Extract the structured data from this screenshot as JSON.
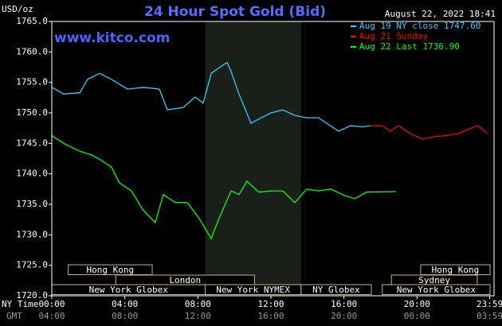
{
  "chart_data": {
    "type": "line",
    "title": "24 Hour Spot Gold (Bid)",
    "y_label": "USD/oz",
    "watermark": "www.kitco.com",
    "timestamp": "August 22, 2022 18:41",
    "x_label": "NY Time",
    "x2_label": "GMT",
    "xlim": [
      0,
      24
    ],
    "ylim": [
      1720,
      1765
    ],
    "grid": false,
    "legend": "top-right",
    "yticks": [
      {
        "value": 1765,
        "label": "1765.0"
      },
      {
        "value": 1760,
        "label": "1760.0"
      },
      {
        "value": 1755,
        "label": "1755.0"
      },
      {
        "value": 1750,
        "label": "1750.0"
      },
      {
        "value": 1745,
        "label": "1745.0"
      },
      {
        "value": 1740,
        "label": "1740.0"
      },
      {
        "value": 1735,
        "label": "1735.0"
      },
      {
        "value": 1730,
        "label": "1730.0"
      },
      {
        "value": 1725,
        "label": "1725.0"
      },
      {
        "value": 1720,
        "label": "1720.0"
      }
    ],
    "xticks": [
      {
        "value": 0,
        "label": "00:00"
      },
      {
        "value": 4,
        "label": "04:00"
      },
      {
        "value": 8,
        "label": "08:00"
      },
      {
        "value": 12,
        "label": "12:00"
      },
      {
        "value": 16,
        "label": "16:00"
      },
      {
        "value": 20,
        "label": "20:00"
      },
      {
        "value": 23.98,
        "label": "23:59"
      }
    ],
    "x2ticks": [
      {
        "value": 0,
        "label": "04:00"
      },
      {
        "value": 4,
        "label": "08:00"
      },
      {
        "value": 8,
        "label": "12:00"
      },
      {
        "value": 12,
        "label": "16:00"
      },
      {
        "value": 16,
        "label": "20:00"
      },
      {
        "value": 20,
        "label": "00:00"
      },
      {
        "value": 23.98,
        "label": "03:59"
      }
    ],
    "shaded": [
      8.4,
      13.65
    ],
    "session_rows": [
      [
        {
          "name": "Hong Kong",
          "start": 0.9,
          "end": 5.5
        },
        {
          "name": "Hong Kong",
          "start": 20.2,
          "end": 24
        }
      ],
      [
        {
          "name": "London",
          "start": 3.5,
          "end": 11.1
        },
        {
          "name": "Sydney",
          "start": 18.6,
          "end": 23.3
        }
      ],
      [
        {
          "name": "New York Globex",
          "start": 0,
          "end": 8.4
        },
        {
          "name": "New York NYMEX",
          "start": 8.4,
          "end": 13.65
        },
        {
          "name": "NY Globex",
          "start": 13.65,
          "end": 17.5
        },
        {
          "name": "New York Globex",
          "start": 18.1,
          "end": 24
        }
      ]
    ],
    "series": [
      {
        "name": "Aug 19 NY close 1747.60",
        "color": "#33ccff",
        "x": [
          0,
          0.65,
          1.53,
          1.96,
          2.62,
          3.27,
          4.15,
          5.02,
          5.89,
          6.33,
          7.2,
          7.85,
          8.29,
          8.73,
          9.6,
          9.82,
          10.25,
          10.91,
          11.34,
          12,
          12.65,
          13.31,
          13.96,
          14.62,
          15.05,
          15.71,
          16.36,
          17.02,
          17.45
        ],
        "values": [
          1754.2,
          1753.1,
          1753.3,
          1755.5,
          1756.5,
          1755.5,
          1753.9,
          1754.2,
          1753.9,
          1750.5,
          1750.9,
          1752.6,
          1751.6,
          1756.5,
          1758.3,
          1756.8,
          1753.1,
          1748.3,
          1749.0,
          1750.0,
          1750.5,
          1749.6,
          1749.2,
          1749.2,
          1748.3,
          1747.0,
          1747.9,
          1747.7,
          1747.9
        ]
      },
      {
        "name": "Aug 21 Sunday",
        "color": "#ff0000",
        "x": [
          17.45,
          18.1,
          18.54,
          18.98,
          19.63,
          20.29,
          20.94,
          21.6,
          22.25,
          22.9,
          23.34,
          23.87
        ],
        "values": [
          1747.9,
          1747.9,
          1747.0,
          1747.9,
          1746.6,
          1745.7,
          1746.1,
          1746.3,
          1746.6,
          1747.4,
          1747.9,
          1746.6
        ]
      },
      {
        "name": "Aug 22 Last 1736.90",
        "color": "#00ff00",
        "x": [
          0,
          0.65,
          1.53,
          2.18,
          2.62,
          3.27,
          3.71,
          4.36,
          5.02,
          5.67,
          6.11,
          6.76,
          7.42,
          8.07,
          8.73,
          9.16,
          9.82,
          10.25,
          10.69,
          11.34,
          12,
          12.65,
          13.31,
          13.96,
          14.62,
          15.27,
          15.92,
          16.58,
          17.23,
          18.85
        ],
        "values": [
          1746.3,
          1745.0,
          1743.7,
          1743.1,
          1742.4,
          1741.1,
          1738.5,
          1737.2,
          1734.0,
          1732.0,
          1736.6,
          1735.3,
          1735.3,
          1732.7,
          1729.4,
          1732.7,
          1737.2,
          1736.6,
          1738.8,
          1737.0,
          1737.2,
          1737.2,
          1735.3,
          1737.5,
          1737.2,
          1737.5,
          1736.6,
          1735.9,
          1737.0,
          1737.1
        ]
      }
    ]
  }
}
